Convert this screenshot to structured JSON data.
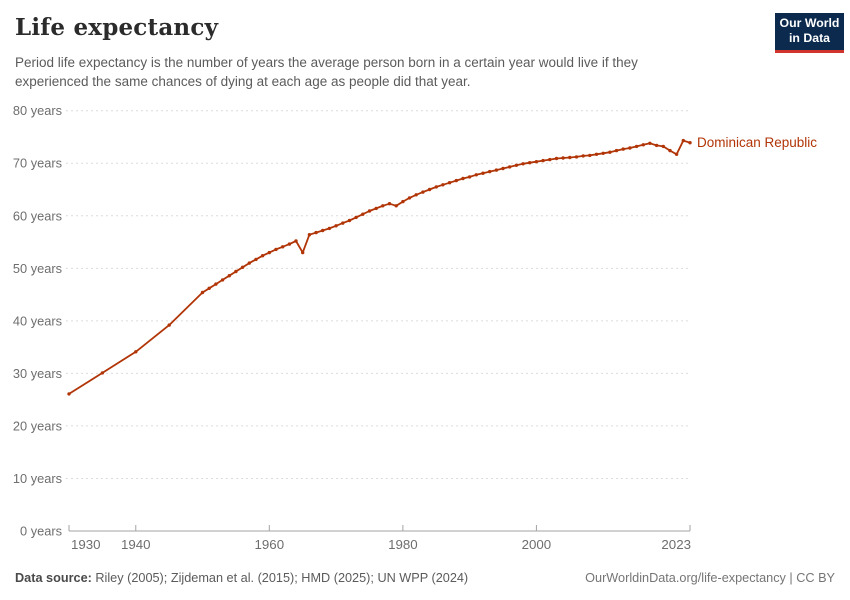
{
  "header": {
    "title": "Life expectancy",
    "subtitle": "Period life expectancy is the number of years the average person born in a certain year would live if they experienced the same chances of dying at each age as people did that year.",
    "logo": {
      "line1": "Our World",
      "line2": "in Data",
      "bg_color": "#0b2a4e",
      "accent_color": "#d0342c"
    }
  },
  "footer": {
    "source_label": "Data source:",
    "source_text": " Riley (2005); Zijdeman et al. (2015); HMD (2025); UN WPP (2024)",
    "link_text": "OurWorldinData.org/life-expectancy | CC BY"
  },
  "chart_data": {
    "type": "line",
    "title": "Life expectancy",
    "grid": "horizontal-dashed",
    "legend_position": "end-of-line-label",
    "xlim": [
      1930,
      2023
    ],
    "ylim": [
      0,
      80
    ],
    "x_ticks": [
      1930,
      1940,
      1960,
      1980,
      2000,
      2023
    ],
    "y_ticks": [
      0,
      10,
      20,
      30,
      40,
      50,
      60,
      70,
      80
    ],
    "y_tick_suffix": " years",
    "colors": {
      "line": "#b13507",
      "grid": "#dcdcdc",
      "axis": "#a3a3a3",
      "tick_text": "#6e6e6e"
    },
    "series": [
      {
        "name": "Dominican Republic",
        "color": "#b13507",
        "x": [
          1930,
          1935,
          1940,
          1945,
          1950,
          1951,
          1952,
          1953,
          1954,
          1955,
          1956,
          1957,
          1958,
          1959,
          1960,
          1961,
          1962,
          1963,
          1964,
          1965,
          1966,
          1967,
          1968,
          1969,
          1970,
          1971,
          1972,
          1973,
          1974,
          1975,
          1976,
          1977,
          1978,
          1979,
          1980,
          1981,
          1982,
          1983,
          1984,
          1985,
          1986,
          1987,
          1988,
          1989,
          1990,
          1991,
          1992,
          1993,
          1994,
          1995,
          1996,
          1997,
          1998,
          1999,
          2000,
          2001,
          2002,
          2003,
          2004,
          2005,
          2006,
          2007,
          2008,
          2009,
          2010,
          2011,
          2012,
          2013,
          2014,
          2015,
          2016,
          2017,
          2018,
          2019,
          2020,
          2021,
          2022,
          2023
        ],
        "values": [
          26.1,
          30.1,
          34.1,
          39.2,
          45.4,
          46.2,
          47.0,
          47.8,
          48.6,
          49.4,
          50.2,
          51.0,
          51.7,
          52.4,
          53.0,
          53.6,
          54.1,
          54.6,
          55.2,
          53.0,
          56.4,
          56.8,
          57.2,
          57.6,
          58.1,
          58.6,
          59.1,
          59.7,
          60.3,
          60.9,
          61.4,
          61.9,
          62.3,
          61.9,
          62.7,
          63.4,
          64.0,
          64.5,
          65.0,
          65.5,
          65.9,
          66.3,
          66.7,
          67.1,
          67.4,
          67.8,
          68.1,
          68.4,
          68.7,
          69.0,
          69.3,
          69.6,
          69.9,
          70.1,
          70.3,
          70.5,
          70.7,
          70.9,
          71.0,
          71.1,
          71.2,
          71.4,
          71.5,
          71.7,
          71.9,
          72.1,
          72.4,
          72.7,
          72.9,
          73.2,
          73.5,
          73.8,
          73.4,
          73.2,
          72.4,
          71.7,
          74.3,
          73.9
        ]
      }
    ]
  }
}
